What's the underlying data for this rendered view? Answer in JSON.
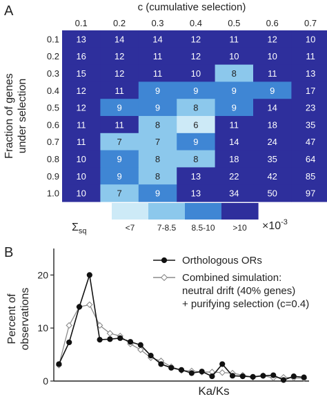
{
  "panel_a_label": "A",
  "panel_b_label": "B",
  "chart_data": [
    {
      "type": "heatmap",
      "xlabel": "c (cumulative selection)",
      "ylabel": "Fraction of genes under selection",
      "x": [
        "0.1",
        "0.2",
        "0.3",
        "0.4",
        "0.5",
        "0.6",
        "0.7"
      ],
      "y": [
        "0.1",
        "0.2",
        "0.3",
        "0.4",
        "0.5",
        "0.6",
        "0.7",
        "0.8",
        "0.9",
        "1.0"
      ],
      "values": [
        [
          13,
          14,
          14,
          12,
          11,
          12,
          10
        ],
        [
          16,
          12,
          11,
          12,
          10,
          10,
          11
        ],
        [
          15,
          12,
          11,
          10,
          8,
          11,
          13
        ],
        [
          12,
          11,
          9,
          9,
          9,
          9,
          17
        ],
        [
          12,
          9,
          9,
          8,
          9,
          14,
          23
        ],
        [
          11,
          11,
          8,
          6,
          11,
          18,
          35
        ],
        [
          11,
          7,
          7,
          9,
          14,
          24,
          47
        ],
        [
          10,
          9,
          8,
          8,
          18,
          35,
          64
        ],
        [
          10,
          9,
          8,
          13,
          22,
          42,
          85
        ],
        [
          10,
          7,
          9,
          13,
          34,
          50,
          97
        ]
      ],
      "legend": {
        "symbol": "Σsq",
        "bins": [
          "<7",
          "7-8.5",
          "8.5-10",
          ">10"
        ],
        "colors": [
          "#cdeaf7",
          "#8cc8ec",
          "#3f86d4",
          "#2e2f9c"
        ],
        "thresholds": [
          7,
          8.5,
          10
        ],
        "scale": "×10",
        "scale_exp": "-3"
      }
    },
    {
      "type": "line",
      "xlabel": "Ka/Ks",
      "ylabel": "Percent of observations",
      "ylim": [
        0,
        25
      ],
      "yticks": [
        0,
        10,
        20
      ],
      "x": [
        1,
        2,
        3,
        4,
        5,
        6,
        7,
        8,
        9,
        10,
        11,
        12,
        13,
        14,
        15,
        16,
        17,
        18,
        19,
        20,
        21,
        22,
        23,
        24,
        25
      ],
      "legend_position": "top-right",
      "series": [
        {
          "name": "Orthologous ORs",
          "marker": "filled-circle",
          "color": "#111111",
          "values": [
            3.2,
            7.3,
            14.0,
            20.0,
            7.8,
            7.9,
            8.1,
            7.4,
            6.8,
            4.8,
            3.2,
            2.5,
            2.1,
            1.5,
            1.8,
            0.9,
            3.2,
            1.0,
            0.9,
            0.8,
            1.0,
            1.1,
            0.2,
            0.9,
            0.7
          ]
        },
        {
          "name": "Combined simulation:\nneutral drift (40% genes)\n+ purifying selection (c=0.4)",
          "marker": "open-diamond",
          "color": "#8a8a8a",
          "values": [
            3.0,
            10.5,
            14.0,
            14.4,
            10.5,
            9.0,
            8.5,
            7.0,
            5.9,
            4.4,
            3.8,
            2.7,
            2.0,
            1.9,
            1.7,
            1.7,
            1.6,
            1.5,
            1.1,
            0.7,
            1.0,
            0.6,
            0.7,
            0.6,
            0.5
          ]
        }
      ]
    }
  ]
}
